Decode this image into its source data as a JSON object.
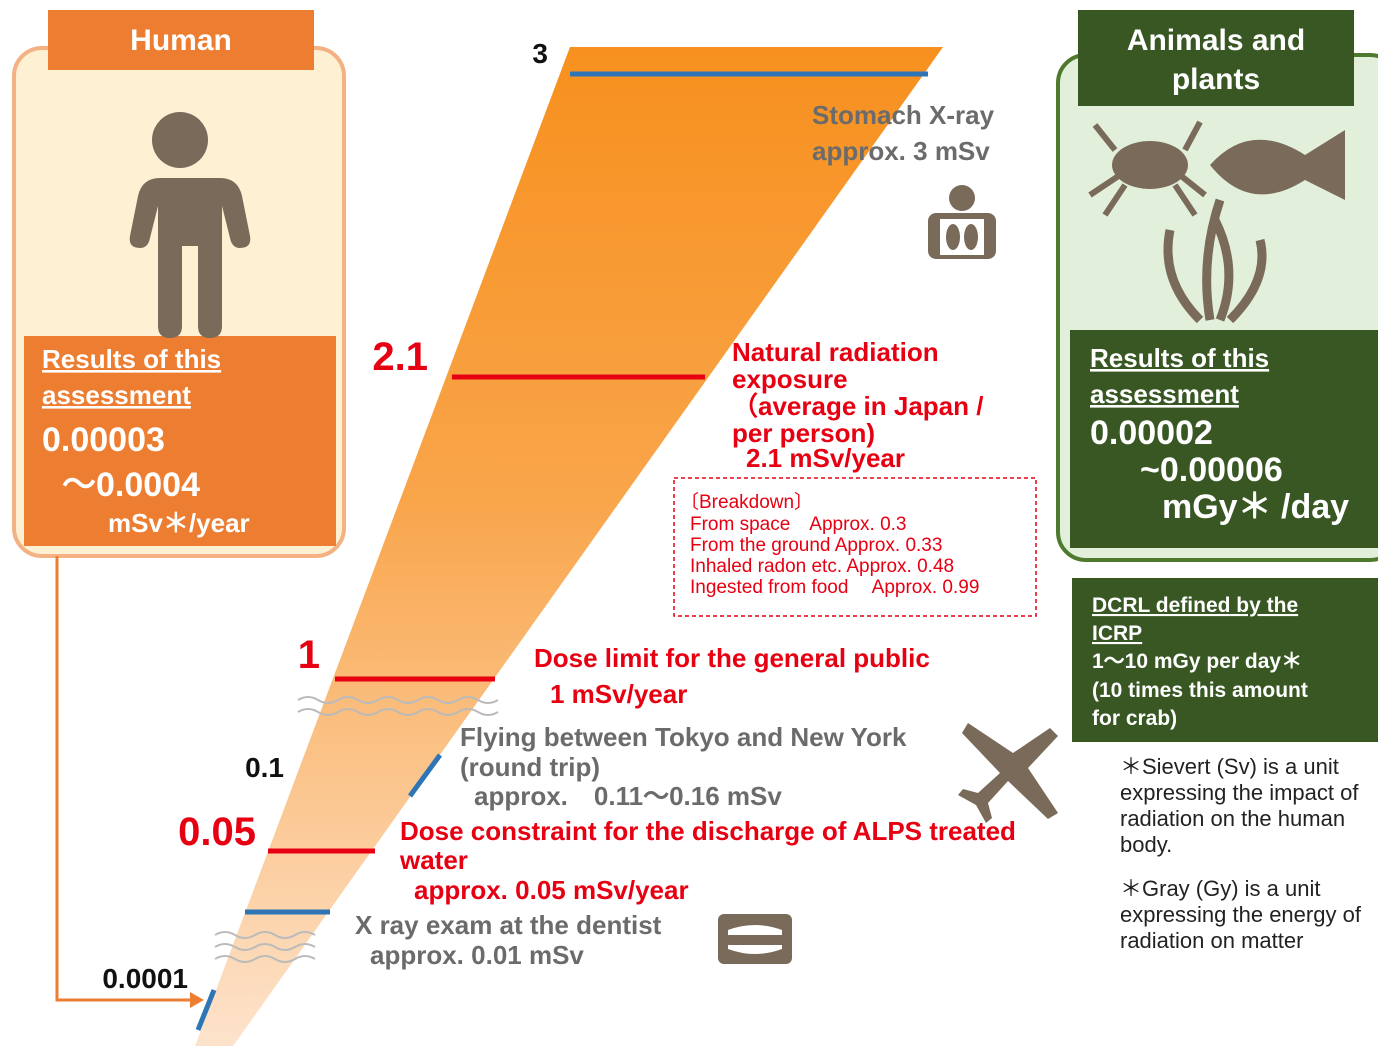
{
  "human": {
    "title": "Human",
    "result_heading": [
      "Results of this",
      "assessment"
    ],
    "values": [
      "0.00003",
      "～0.0004"
    ],
    "unit": "mSv＊/year"
  },
  "animals_and_plants": {
    "title": [
      "Animals and",
      "plants"
    ],
    "result_heading": [
      "Results of this",
      "assessment"
    ],
    "values": [
      "0.00002",
      "~0.00006"
    ],
    "unit": "mGy＊ /day"
  },
  "dcrl": [
    "DCRL defined by the",
    "ICRP",
    "1～10 mGy per day＊",
    "(10 times this amount",
    "for crab)"
  ],
  "scale_labels": [
    "3",
    "2.1",
    "1",
    "0.1",
    "0.05",
    "0.0001"
  ],
  "stomach_xray": [
    "Stomach X-ray",
    "approx. 3 mSv"
  ],
  "natural_radiation": [
    "Natural radiation",
    "exposure",
    "（average in Japan /",
    "per person)",
    "2.1 mSv/year"
  ],
  "breakdown": [
    "〔Breakdown〕",
    "From space　Approx. 0.3",
    "From the ground Approx. 0.33",
    "Inhaled radon etc. Approx. 0.48",
    "Ingested from food　 Approx. 0.99"
  ],
  "dose_limit": [
    "Dose limit for the general public",
    "1 mSv/year"
  ],
  "flight": [
    "Flying between Tokyo and New York",
    "(round trip)",
    "approx.　0.11～0.16 mSv"
  ],
  "dose_constraint": [
    "Dose constraint for the discharge of ALPS treated",
    "water",
    "approx. 0.05 mSv/year"
  ],
  "dentist": [
    "X ray exam at the dentist",
    "approx. 0.01 mSv"
  ],
  "notes": [
    [
      "＊Sievert (Sv) is a unit",
      "expressing the impact of",
      "radiation on the human",
      "body."
    ],
    [
      "＊Gray (Gy) is a unit",
      "expressing the energy of",
      "radiation on matter"
    ]
  ]
}
